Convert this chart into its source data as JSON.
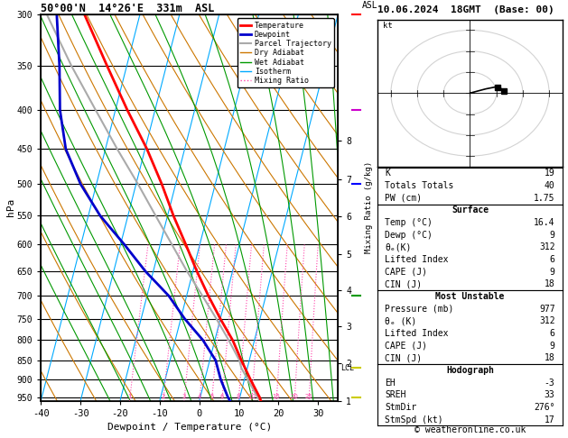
{
  "title_left": "50°00'N  14°26'E  331m  ASL",
  "title_right": "10.06.2024  18GMT  (Base: 00)",
  "xlabel": "Dewpoint / Temperature (°C)",
  "pmin": 300,
  "pmax": 960,
  "xlim": [
    -40,
    35
  ],
  "xticks": [
    -40,
    -30,
    -20,
    -10,
    0,
    10,
    20,
    30
  ],
  "pressure_levels": [
    300,
    350,
    400,
    450,
    500,
    550,
    600,
    650,
    700,
    750,
    800,
    850,
    900,
    950
  ],
  "skew": 25,
  "temp_profile_p": [
    977,
    950,
    900,
    850,
    800,
    750,
    700,
    650,
    600,
    550,
    500,
    450,
    400,
    350,
    300
  ],
  "temp_profile_T": [
    16.4,
    15.0,
    11.5,
    8.0,
    4.5,
    0.0,
    -4.5,
    -9.0,
    -13.5,
    -18.5,
    -23.5,
    -29.5,
    -37.0,
    -45.0,
    -54.0
  ],
  "dewp_profile_p": [
    977,
    950,
    900,
    850,
    800,
    750,
    700,
    650,
    600,
    550,
    500,
    450,
    400,
    350,
    300
  ],
  "dewp_profile_T": [
    9.0,
    7.0,
    4.0,
    1.5,
    -3.0,
    -9.0,
    -14.5,
    -22.0,
    -29.0,
    -37.0,
    -44.0,
    -50.0,
    -54.0,
    -57.0,
    -61.0
  ],
  "parcel_profile_p": [
    977,
    950,
    900,
    870,
    850,
    800,
    750,
    700,
    650,
    600,
    550,
    500,
    450,
    400,
    350,
    300
  ],
  "parcel_profile_T": [
    16.4,
    14.5,
    10.8,
    8.5,
    7.5,
    3.5,
    -1.0,
    -6.0,
    -11.5,
    -17.0,
    -23.0,
    -29.5,
    -37.0,
    -45.0,
    -54.0,
    -63.5
  ],
  "lcl_pressure": 870,
  "km_ticks": [
    1,
    2,
    3,
    4,
    5,
    6,
    7,
    8
  ],
  "km_pressures": [
    976,
    870,
    778,
    696,
    623,
    556,
    496,
    441
  ],
  "temp_color": "#ff0000",
  "dewp_color": "#0000cc",
  "parcel_color": "#aaaaaa",
  "isotherm_color": "#00aaff",
  "dry_adiabat_color": "#cc7700",
  "wet_adiabat_color": "#009900",
  "mix_ratio_color": "#ff44aa",
  "mix_ratio_vals": [
    1,
    2,
    3,
    4,
    5,
    6,
    8,
    10,
    15,
    20,
    25
  ],
  "mix_ratio_labels": [
    "1",
    "2",
    "3",
    "4",
    "5",
    "6",
    "8",
    "10",
    "15",
    "20",
    "25"
  ],
  "hodo_u": [
    0,
    3,
    6,
    10,
    12,
    13
  ],
  "hodo_v": [
    0,
    1,
    2,
    3,
    2,
    1
  ],
  "storm_u": 10.5,
  "storm_v": 2.5,
  "K": 19,
  "TT": 40,
  "PW": 1.75,
  "surf_temp": 16.4,
  "surf_dewp": 9,
  "surf_theta_e": 312,
  "surf_li": 6,
  "surf_cape": 9,
  "surf_cin": 18,
  "mu_pressure": 977,
  "mu_theta_e": 312,
  "mu_li": 6,
  "mu_cape": 9,
  "mu_cin": 18,
  "EH": -3,
  "SREH": 33,
  "StmDir": 276,
  "StmSpd": 17,
  "copyright": "© weatheronline.co.uk",
  "wind_barb_pressures": [
    300,
    400,
    500,
    700,
    870,
    950
  ],
  "wind_barb_colors": [
    "#ff0000",
    "#cc00cc",
    "#0000ff",
    "#009900",
    "#cccc00",
    "#cccc00"
  ]
}
